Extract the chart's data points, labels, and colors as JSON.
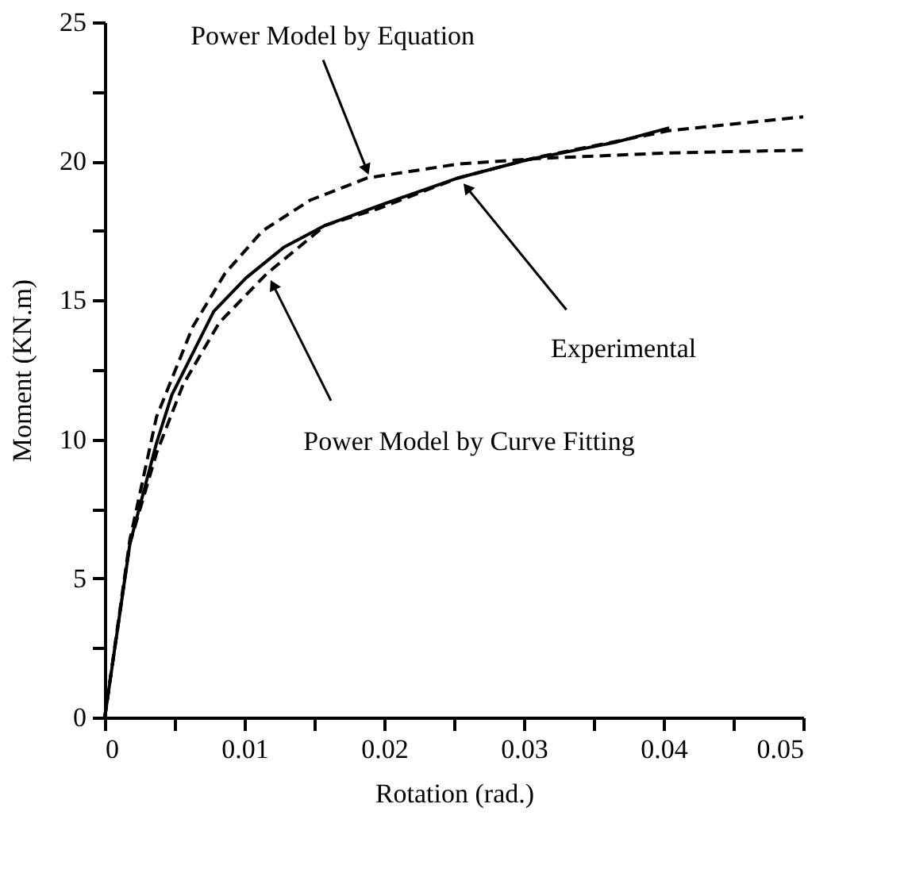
{
  "chart_data": {
    "type": "line",
    "xlabel": "Rotation (rad.)",
    "ylabel": "Moment (KN.m)",
    "xlim": [
      0,
      0.05
    ],
    "ylim": [
      0,
      25
    ],
    "xticks": [
      0,
      {
        "value": 0.005,
        "label": null
      },
      0.01,
      {
        "value": 0.015,
        "label": null
      },
      0.02,
      {
        "value": 0.025,
        "label": null
      },
      0.03,
      {
        "value": 0.035,
        "label": null
      },
      0.04,
      {
        "value": 0.045,
        "label": null
      },
      0.05
    ],
    "yticks": [
      0,
      {
        "value": 2.5,
        "label": null
      },
      5,
      {
        "value": 7.5,
        "label": null
      },
      10,
      {
        "value": 12.5,
        "label": null
      },
      15,
      {
        "value": 17.5,
        "label": null
      },
      20,
      {
        "value": 22.5,
        "label": null
      },
      25
    ],
    "grid": false,
    "marker": "none",
    "series": [
      {
        "color": "#000000",
        "line_style": "solid",
        "x": [
          0,
          0.0018,
          0.0037,
          0.0048,
          0.0078,
          0.0101,
          0.0128,
          0.0158,
          0.0196,
          0.0253,
          0.0302,
          0.0367,
          0.0404
        ],
        "values": [
          0,
          6.25,
          9.86,
          11.6,
          14.6,
          15.8,
          16.9,
          17.7,
          18.4,
          19.4,
          20.05,
          20.7,
          21.2
        ]
      },
      {
        "color": "#000000",
        "line_style": "dashed",
        "x": [
          0,
          0.0018,
          0.0037,
          0.0063,
          0.0086,
          0.0113,
          0.0147,
          0.0188,
          0.0253,
          0.031,
          0.0404,
          0.05
        ],
        "values": [
          0,
          6.4,
          10.8,
          14.05,
          15.96,
          17.5,
          18.6,
          19.4,
          19.9,
          20.1,
          20.3,
          20.4
        ]
      },
      {
        "color": "#000000",
        "line_style": "dashed",
        "x": [
          0,
          0.0018,
          0.0037,
          0.0056,
          0.0082,
          0.0116,
          0.0158,
          0.0196,
          0.0253,
          0.031,
          0.0404,
          0.05
        ],
        "values": [
          0,
          6.25,
          9.5,
          11.96,
          14.2,
          15.96,
          17.7,
          18.3,
          19.4,
          20.15,
          21.1,
          21.6
        ]
      }
    ],
    "annotations": [
      {
        "text": "Power Model by Equation",
        "x": 0.0187,
        "y": 19.76
      },
      {
        "text": "Experimental",
        "x": 0.026,
        "y": 19.0
      },
      {
        "text": "Power Model by Curve Fitting",
        "x": 0.0121,
        "y": 15.5
      }
    ]
  }
}
